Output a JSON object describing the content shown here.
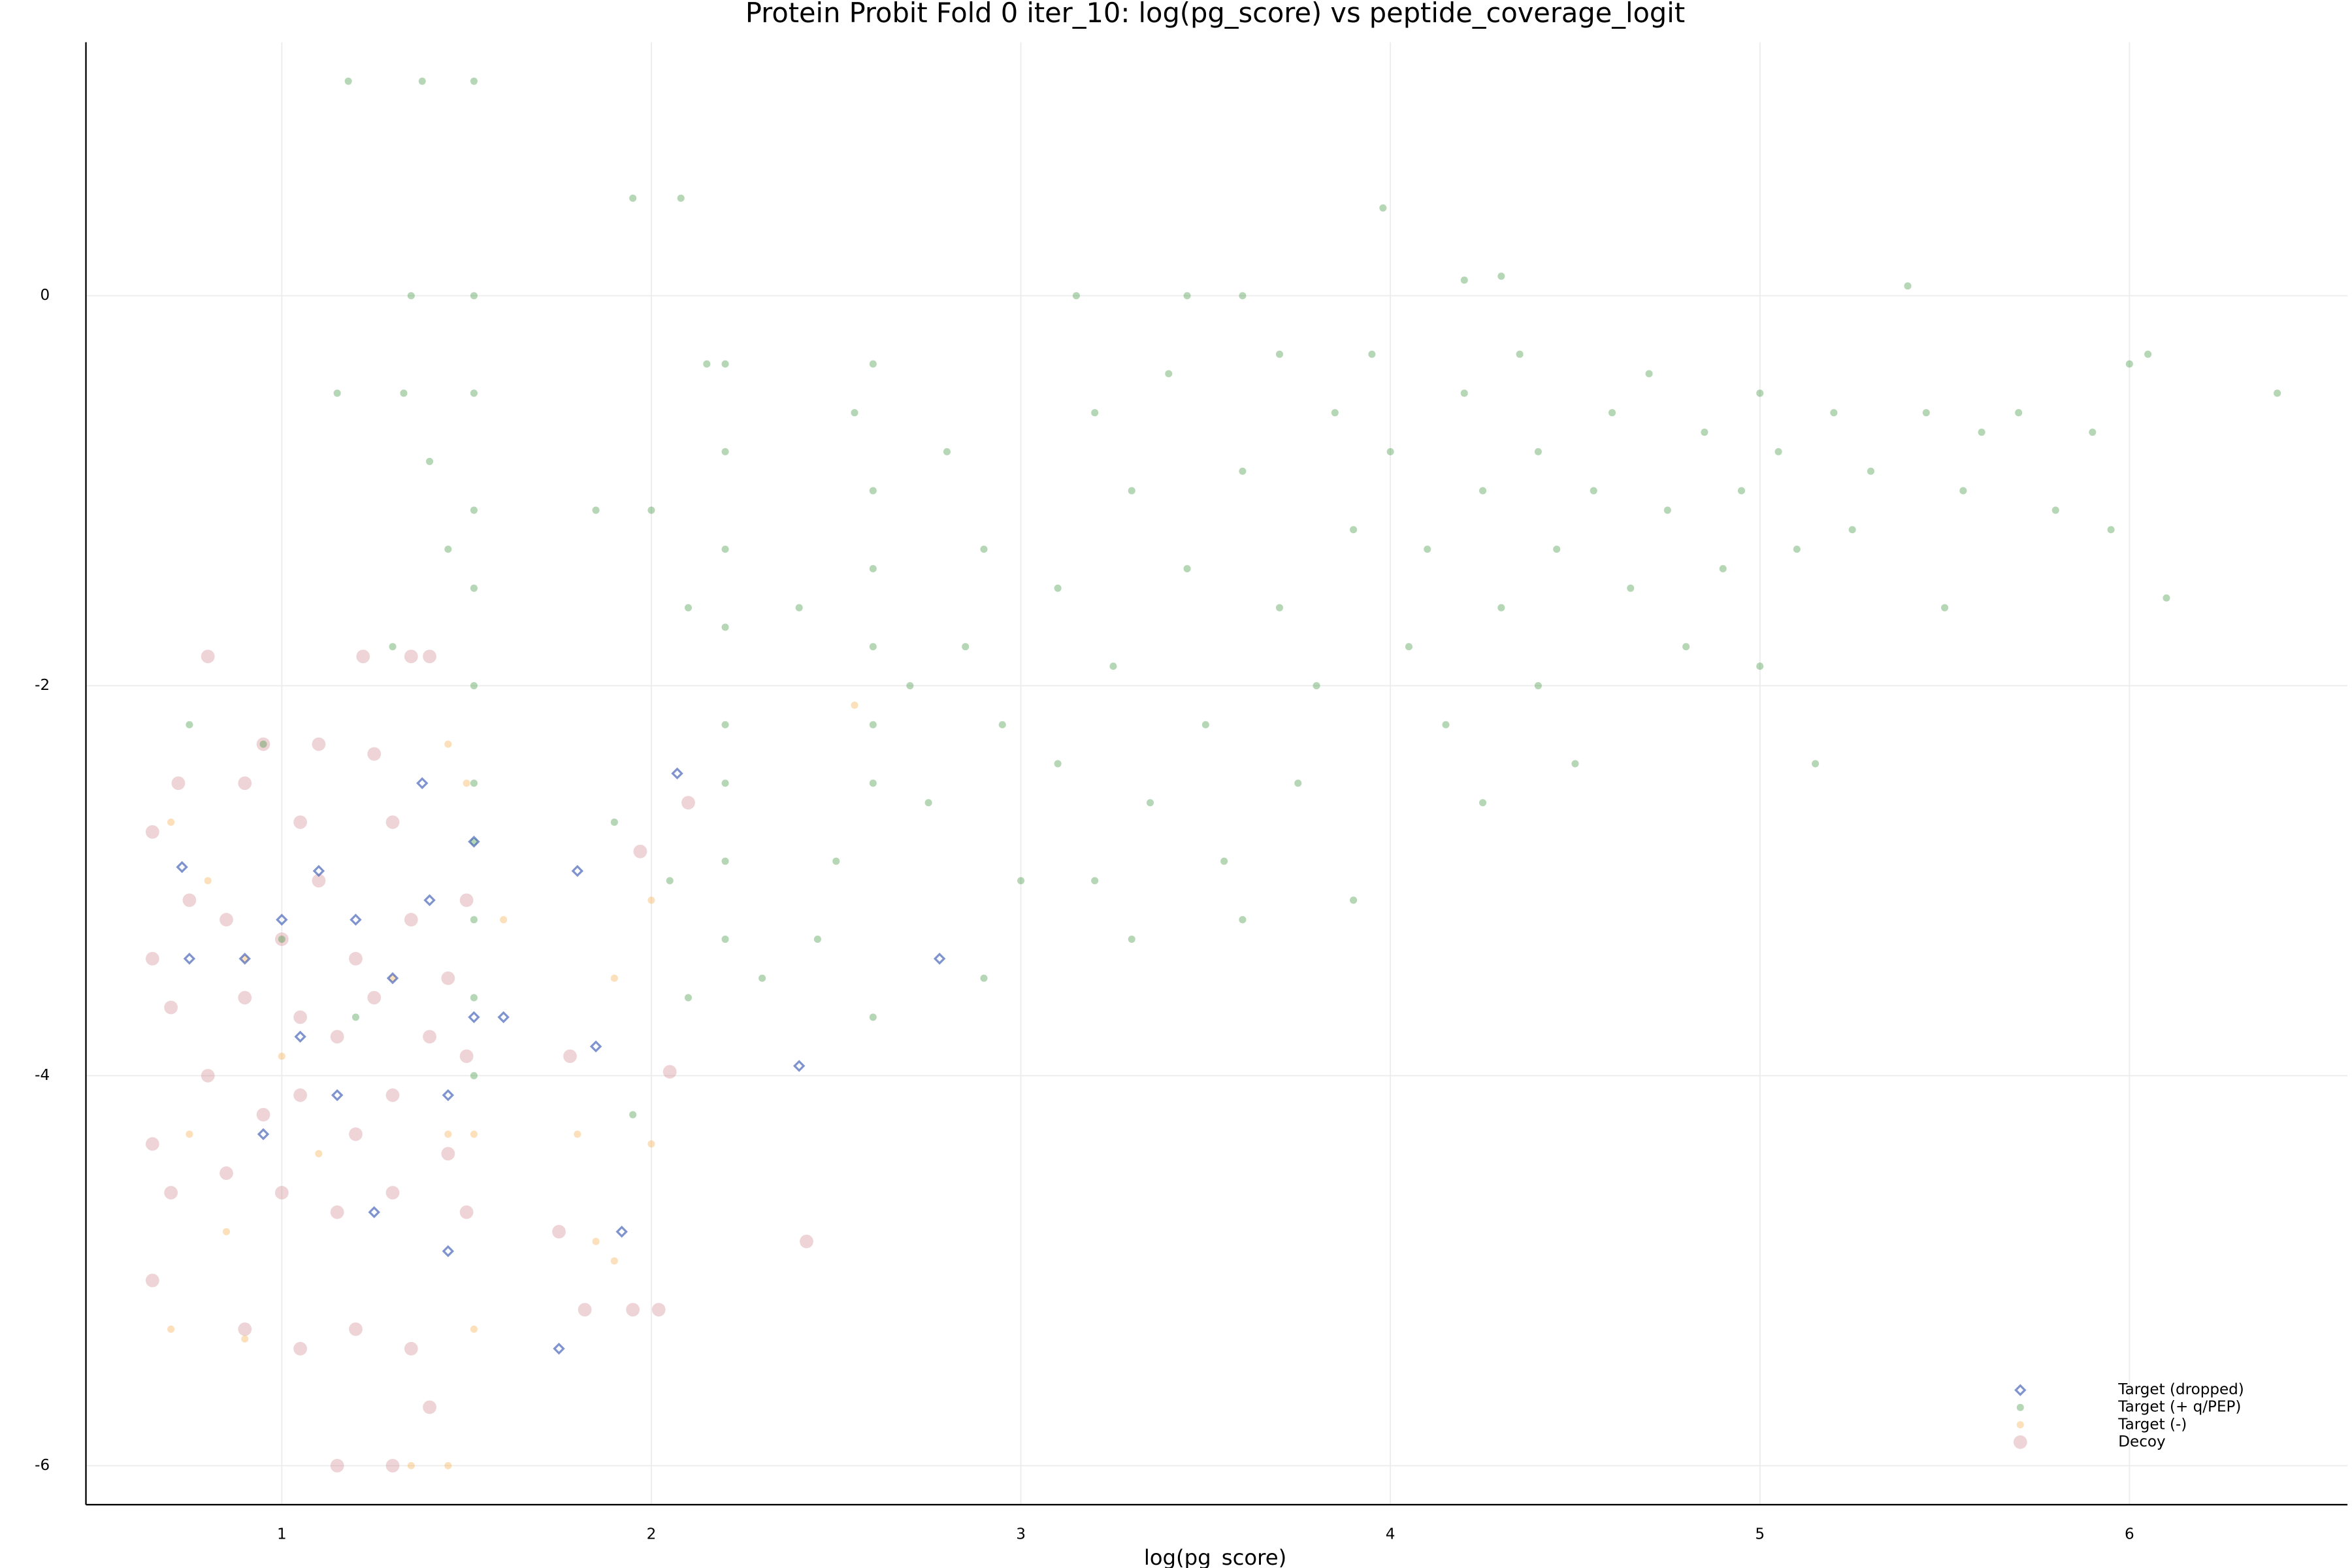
{
  "chart_data": {
    "type": "scatter",
    "title": "Protein Probit Fold 0 iter_10: log(pg_score) vs peptide_coverage_logit",
    "x_label": "log(pg_score)",
    "xlim": [
      0.47,
      6.59
    ],
    "ylim": [
      -6.2,
      1.3
    ],
    "xticks": [
      1,
      2,
      3,
      4,
      5,
      6
    ],
    "yticks": [
      -6,
      -4,
      -2,
      0
    ],
    "grid": true,
    "legend_position": "bottom right",
    "series": [
      {
        "name": "Target (dropped)",
        "color": "#3b5bb5",
        "marker": "diamond",
        "x": [
          0.73,
          0.75,
          0.9,
          1.0,
          1.1,
          1.2,
          1.3,
          1.4,
          1.45,
          0.95,
          1.05,
          1.15,
          1.25,
          1.45,
          1.38,
          1.52,
          1.52,
          1.6,
          1.75,
          1.8,
          1.85,
          1.92,
          2.4,
          2.78,
          2.07
        ],
        "values": [
          -2.93,
          -3.4,
          -3.4,
          -3.2,
          -2.95,
          -3.2,
          -3.5,
          -3.1,
          -4.1,
          -4.3,
          -3.8,
          -4.1,
          -4.7,
          -4.9,
          -2.5,
          -2.8,
          -3.7,
          -3.7,
          -5.4,
          -2.95,
          -3.85,
          -4.8,
          -3.95,
          -3.4,
          -2.45
        ]
      },
      {
        "name": "Target (+ q/PEP)",
        "color": "#2e8b2e",
        "marker": "circle",
        "x": [
          1.52,
          1.52,
          1.52,
          1.52,
          1.52,
          1.52,
          1.52,
          1.52,
          1.52,
          1.52,
          1.52,
          1.38,
          1.18,
          1.35,
          1.33,
          1.15,
          1.4,
          1.45,
          1.3,
          0.95,
          0.75,
          1.0,
          1.2,
          1.95,
          2.08,
          2.15,
          2.2,
          2.2,
          2.2,
          2.2,
          2.2,
          2.2,
          2.2,
          2.2,
          2.0,
          1.85,
          2.1,
          1.9,
          2.05,
          2.1,
          1.95,
          2.3,
          2.6,
          2.55,
          2.6,
          2.6,
          2.6,
          2.6,
          2.6,
          2.5,
          2.45,
          2.4,
          2.7,
          2.8,
          2.9,
          2.85,
          2.75,
          2.95,
          3.0,
          2.9,
          2.6,
          3.15,
          3.45,
          3.6,
          3.2,
          3.4,
          3.3,
          3.1,
          3.25,
          3.1,
          3.35,
          3.2,
          3.5,
          3.45,
          3.6,
          3.7,
          3.55,
          3.8,
          3.75,
          3.9,
          3.85,
          3.95,
          3.9,
          3.6,
          3.3,
          4.0,
          4.1,
          4.05,
          4.2,
          4.25,
          4.15,
          4.3,
          4.35,
          4.4,
          4.45,
          4.4,
          4.25,
          4.5,
          4.55,
          4.6,
          4.65,
          4.7,
          4.75,
          4.8,
          4.85,
          4.9,
          4.95,
          5.0,
          5.0,
          5.05,
          5.1,
          5.15,
          5.2,
          5.25,
          5.3,
          5.4,
          5.45,
          5.5,
          5.55,
          5.6,
          5.7,
          5.8,
          5.9,
          5.95,
          6.0,
          6.05,
          6.1,
          6.4,
          3.98,
          4.3,
          4.2,
          3.7
        ],
        "values": [
          0,
          -0.5,
          -1.1,
          -1.5,
          -2.0,
          -2.5,
          -2.8,
          -3.2,
          -3.6,
          -4.0,
          1.1,
          1.1,
          1.1,
          0,
          -0.5,
          -0.5,
          -0.85,
          -1.3,
          -1.8,
          -2.3,
          -2.2,
          -3.3,
          -3.7,
          0.5,
          0.5,
          -0.35,
          -0.35,
          -0.8,
          -1.3,
          -1.7,
          -2.2,
          -2.5,
          -2.9,
          -3.3,
          -1.1,
          -1.1,
          -1.6,
          -2.7,
          -3.0,
          -3.6,
          -4.2,
          -3.5,
          -0.35,
          -0.6,
          -1.0,
          -1.4,
          -1.8,
          -2.2,
          -2.5,
          -2.9,
          -3.3,
          -1.6,
          -2.0,
          -0.8,
          -1.3,
          -1.8,
          -2.6,
          -2.2,
          -3.0,
          -3.5,
          -3.7,
          0,
          0,
          0,
          -0.6,
          -0.4,
          -1.0,
          -1.5,
          -1.9,
          -2.4,
          -2.6,
          -3.0,
          -2.2,
          -1.4,
          -0.9,
          -1.6,
          -2.9,
          -2.0,
          -2.5,
          -1.2,
          -0.6,
          -0.3,
          -3.1,
          -3.2,
          -3.3,
          -0.8,
          -1.3,
          -1.8,
          -0.5,
          -1.0,
          -2.2,
          -1.6,
          -0.3,
          -0.8,
          -1.3,
          -2.0,
          -2.6,
          -2.4,
          -1.0,
          -0.6,
          -1.5,
          -0.4,
          -1.1,
          -1.8,
          -0.7,
          -1.4,
          -1.0,
          -0.5,
          -1.9,
          -0.8,
          -1.3,
          -2.4,
          -0.6,
          -1.2,
          -0.9,
          0.05,
          -0.6,
          -1.6,
          -1.0,
          -0.7,
          -0.6,
          -1.1,
          -0.7,
          -1.2,
          -0.35,
          -0.3,
          -1.55,
          -0.5,
          0.45,
          0.1,
          0.08,
          -0.3
        ]
      },
      {
        "name": "Target (-)",
        "color": "#f5b255",
        "marker": "circle",
        "x": [
          0.7,
          0.8,
          0.9,
          1.0,
          0.75,
          0.85,
          0.7,
          0.9,
          1.1,
          1.3,
          1.45,
          1.5,
          1.45,
          1.52,
          1.52,
          1.35,
          1.45,
          1.9,
          2.0,
          1.8,
          1.9,
          1.85,
          2.0,
          1.6,
          2.55
        ],
        "values": [
          -2.7,
          -3.0,
          -3.4,
          -3.9,
          -4.3,
          -4.8,
          -5.3,
          -5.35,
          -4.4,
          -3.5,
          -4.3,
          -2.5,
          -2.3,
          -4.3,
          -5.3,
          -6.0,
          -6.0,
          -3.5,
          -4.35,
          -4.3,
          -4.95,
          -4.85,
          -3.1,
          -3.2,
          -2.1
        ]
      },
      {
        "name": "Decoy",
        "color": "#c8707a",
        "marker": "circle",
        "x": [
          0.8,
          1.22,
          1.35,
          1.4,
          0.95,
          1.1,
          1.25,
          0.72,
          0.65,
          0.9,
          1.05,
          1.3,
          0.75,
          0.85,
          1.0,
          1.1,
          1.2,
          1.35,
          1.45,
          0.65,
          0.7,
          0.9,
          1.05,
          1.15,
          1.25,
          1.4,
          1.5,
          0.65,
          0.8,
          0.95,
          1.05,
          1.2,
          1.3,
          1.45,
          0.7,
          0.85,
          1.0,
          1.15,
          1.3,
          1.5,
          0.65,
          0.9,
          1.05,
          1.2,
          1.35,
          1.4,
          1.15,
          1.3,
          1.75,
          1.82,
          1.95,
          2.02,
          2.1,
          2.42,
          1.97,
          1.78,
          2.05,
          1.5
        ],
        "values": [
          -1.85,
          -1.85,
          -1.85,
          -1.85,
          -2.3,
          -2.3,
          -2.35,
          -2.5,
          -2.75,
          -2.5,
          -2.7,
          -2.7,
          -3.1,
          -3.2,
          -3.3,
          -3.0,
          -3.4,
          -3.2,
          -3.5,
          -3.4,
          -3.65,
          -3.6,
          -3.7,
          -3.8,
          -3.6,
          -3.8,
          -3.9,
          -4.35,
          -4.0,
          -4.2,
          -4.1,
          -4.3,
          -4.1,
          -4.4,
          -4.6,
          -4.5,
          -4.6,
          -4.7,
          -4.6,
          -4.7,
          -5.05,
          -5.3,
          -5.4,
          -5.3,
          -5.4,
          -5.7,
          -6.0,
          -6.0,
          -4.8,
          -5.2,
          -5.2,
          -5.2,
          -2.6,
          -4.85,
          -2.85,
          -3.9,
          -3.98,
          -3.1
        ]
      }
    ]
  }
}
